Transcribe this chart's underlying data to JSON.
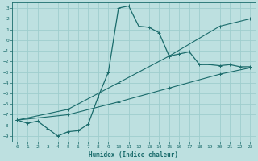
{
  "xlabel": "Humidex (Indice chaleur)",
  "bg_color": "#bde0e0",
  "grid_color": "#9ecece",
  "line_color": "#1a6b6b",
  "xlim": [
    -0.5,
    23.5
  ],
  "ylim": [
    -9.5,
    3.5
  ],
  "xticks": [
    0,
    1,
    2,
    3,
    4,
    5,
    6,
    7,
    8,
    9,
    10,
    11,
    12,
    13,
    14,
    15,
    16,
    17,
    18,
    19,
    20,
    21,
    22,
    23
  ],
  "yticks": [
    3,
    2,
    1,
    0,
    -1,
    -2,
    -3,
    -4,
    -5,
    -6,
    -7,
    -8,
    -9
  ],
  "line1_x": [
    0,
    1,
    2,
    3,
    4,
    5,
    6,
    7,
    8,
    9,
    10,
    11,
    12,
    13,
    14,
    15,
    16,
    17,
    18,
    19,
    20,
    21,
    22,
    23
  ],
  "line1_y": [
    -7.5,
    -7.8,
    -7.6,
    -8.3,
    -9.0,
    -8.6,
    -8.5,
    -7.9,
    -5.3,
    -3.0,
    3.0,
    3.2,
    1.3,
    1.2,
    0.7,
    -1.5,
    -1.3,
    -1.1,
    -2.3,
    -2.3,
    -2.4,
    -2.3,
    -2.5,
    -2.5
  ],
  "line2_x": [
    0,
    5,
    10,
    15,
    20,
    23
  ],
  "line2_y": [
    -7.5,
    -6.5,
    -4.0,
    -1.5,
    1.3,
    2.0
  ],
  "line3_x": [
    0,
    5,
    10,
    15,
    20,
    23
  ],
  "line3_y": [
    -7.5,
    -7.0,
    -5.8,
    -4.5,
    -3.2,
    -2.6
  ]
}
